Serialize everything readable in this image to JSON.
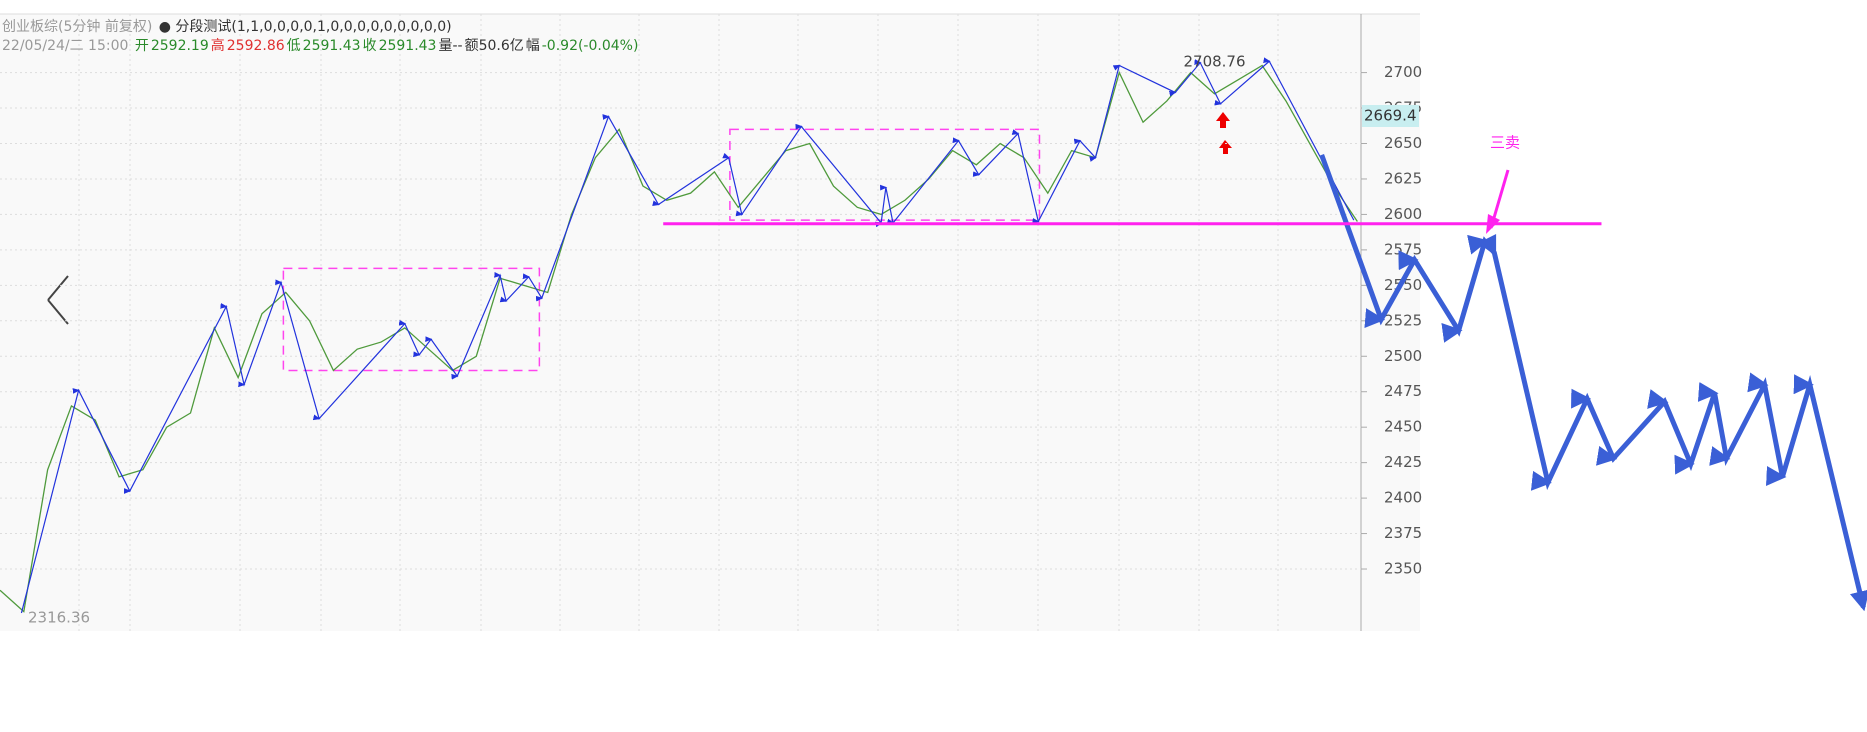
{
  "header": {
    "title": "创业板综(5分钟 前复权)",
    "indicator": "分段测试(1,1,0,0,0,0,1,0,0,0,0,0,0,0,0,0)",
    "datetime": "22/05/24/二 15:00",
    "quote": [
      {
        "text": "开",
        "color": "#2a8a2a"
      },
      {
        "text": "2592.19",
        "color": "#2a8a2a"
      },
      {
        "text": "高",
        "color": "#e03030"
      },
      {
        "text": "2592.86",
        "color": "#e03030"
      },
      {
        "text": "低",
        "color": "#2a8a2a"
      },
      {
        "text": "2591.43",
        "color": "#2a8a2a"
      },
      {
        "text": "收",
        "color": "#2a8a2a"
      },
      {
        "text": "2591.43",
        "color": "#2a8a2a"
      },
      {
        "text": "量--",
        "color": "#333333"
      },
      {
        "text": "额50.6亿",
        "color": "#333333"
      },
      {
        "text": "幅",
        "color": "#333333"
      },
      {
        "text": "-0.92(-0.04%)",
        "color": "#2a8a2a"
      }
    ]
  },
  "chart_data": {
    "type": "line",
    "xlim": [
      0,
      313.6
    ],
    "ylim": [
      2306.3,
      2741.1
    ],
    "yticks": [
      2350,
      2375,
      2400,
      2425,
      2450,
      2475,
      2500,
      2525,
      2550,
      2575,
      2600,
      2625,
      2650,
      2675,
      2700
    ],
    "grid": true,
    "price": {
      "color": "#4f9a3c",
      "x": [
        0,
        4,
        8,
        12,
        16,
        20,
        24,
        28,
        32,
        36,
        40,
        44,
        48,
        52,
        56,
        60,
        64,
        68,
        72,
        76,
        80,
        84,
        88,
        92,
        96,
        100,
        104,
        108,
        112,
        116,
        120,
        124,
        128,
        132,
        136,
        140,
        144,
        148,
        152,
        156,
        160,
        164,
        168,
        172,
        176,
        180,
        184,
        188,
        192,
        196,
        200,
        204,
        208,
        212,
        216,
        220,
        224,
        228
      ],
      "values": [
        2335,
        2320,
        2420,
        2465,
        2455,
        2415,
        2420,
        2450,
        2460,
        2520,
        2485,
        2530,
        2545,
        2525,
        2490,
        2505,
        2510,
        2520,
        2505,
        2490,
        2500,
        2555,
        2550,
        2545,
        2600,
        2640,
        2660,
        2620,
        2610,
        2615,
        2630,
        2605,
        2625,
        2645,
        2650,
        2620,
        2605,
        2600,
        2610,
        2625,
        2645,
        2635,
        2650,
        2640,
        2615,
        2645,
        2640,
        2700,
        2665,
        2680,
        2700,
        2685,
        2695,
        2705,
        2680,
        2650,
        2620,
        2595
      ]
    },
    "zigzag": {
      "color": "#2233dd",
      "x": [
        3.6,
        13.2,
        21.8,
        38,
        41,
        47.2,
        53.6,
        68,
        70.4,
        72.4,
        76.8,
        84,
        85,
        88.8,
        91,
        102.2,
        110.6,
        122.4,
        124.6,
        134.6,
        148,
        148.8,
        150,
        161,
        164.4,
        171,
        174.4,
        181.4,
        184,
        188,
        197.4,
        201.6,
        205,
        213.2,
        227.4
      ],
      "values": [
        2319,
        2476,
        2405,
        2535,
        2480,
        2552,
        2456,
        2523,
        2501,
        2512,
        2486,
        2557,
        2539,
        2556,
        2541,
        2669,
        2607,
        2640,
        2600,
        2662,
        2594,
        2619,
        2594,
        2652,
        2628,
        2657,
        2595,
        2652,
        2640,
        2705,
        2686,
        2707,
        2678,
        2708,
        2596
      ]
    },
    "projection": {
      "color": "#3a5fd6",
      "x": [
        222,
        232,
        237.6,
        245,
        249.4,
        251,
        260,
        266.6,
        271,
        279.6,
        284,
        288,
        290,
        296.4,
        299.4,
        304,
        313
      ],
      "values": [
        2642,
        2526,
        2568,
        2518,
        2581,
        2573,
        2411,
        2470,
        2428,
        2468,
        2424,
        2474,
        2428,
        2480,
        2415,
        2480,
        2323
      ]
    },
    "support": {
      "color": "#ff22ee",
      "x": [
        111.4,
        269
      ],
      "value": 2593.4
    },
    "boxes": [
      {
        "color": "#ff44ee",
        "x": [
          47.6,
          90.6
        ],
        "values": [
          2562,
          2490
        ]
      },
      {
        "color": "#ff44ee",
        "x": [
          122.6,
          174.6
        ],
        "values": [
          2660,
          2596
        ]
      }
    ],
    "peak": {
      "x": 204,
      "value": 2708.76
    },
    "low": {
      "x": 3.6,
      "value": 2316.36
    },
    "current": {
      "value": 2669.4
    },
    "sell_label": "三卖"
  }
}
